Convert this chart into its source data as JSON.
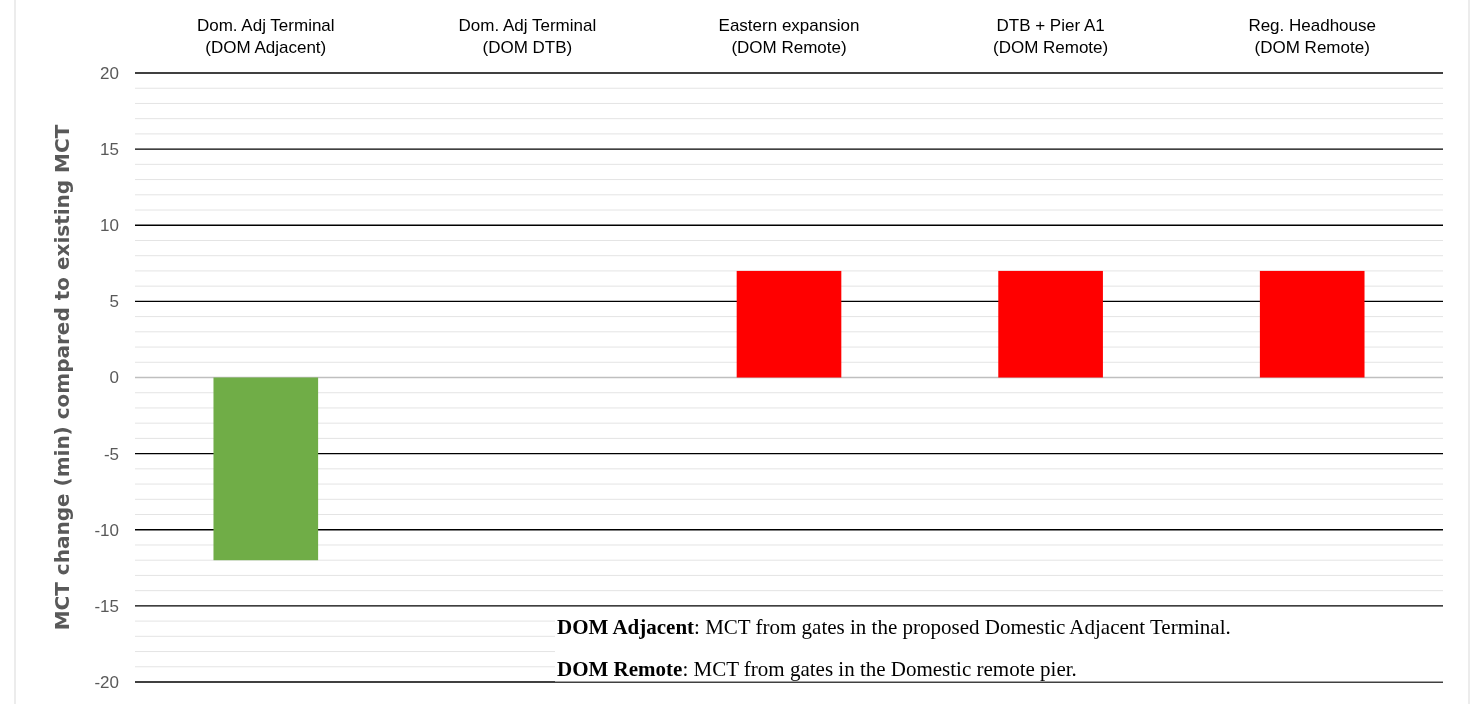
{
  "chart_data": {
    "type": "bar",
    "ylabel": "MCT change (min) compared to existing MCT",
    "categories": [
      "Dom. Adj Terminal\n(DOM Adjacent)",
      "Dom. Adj Terminal\n(DOM DTB)",
      "Eastern expansion\n(DOM Remote)",
      "DTB + Pier A1\n(DOM Remote)",
      "Reg. Headhouse\n(DOM Remote)"
    ],
    "values": [
      -12,
      0,
      7,
      7,
      7
    ],
    "colors": [
      "#70ad47",
      "#ff0000",
      "#ff0000",
      "#ff0000",
      "#ff0000"
    ],
    "ylim": [
      -20,
      20
    ],
    "yticks": [
      -20,
      -15,
      -10,
      -5,
      0,
      5,
      10,
      15,
      20
    ],
    "grid": "y",
    "annotations": [
      "DOM Adjacent: MCT from gates in the proposed Domestic Adjacent Terminal.",
      "DOM Remote: MCT from gates in the Domestic remote pier."
    ]
  }
}
